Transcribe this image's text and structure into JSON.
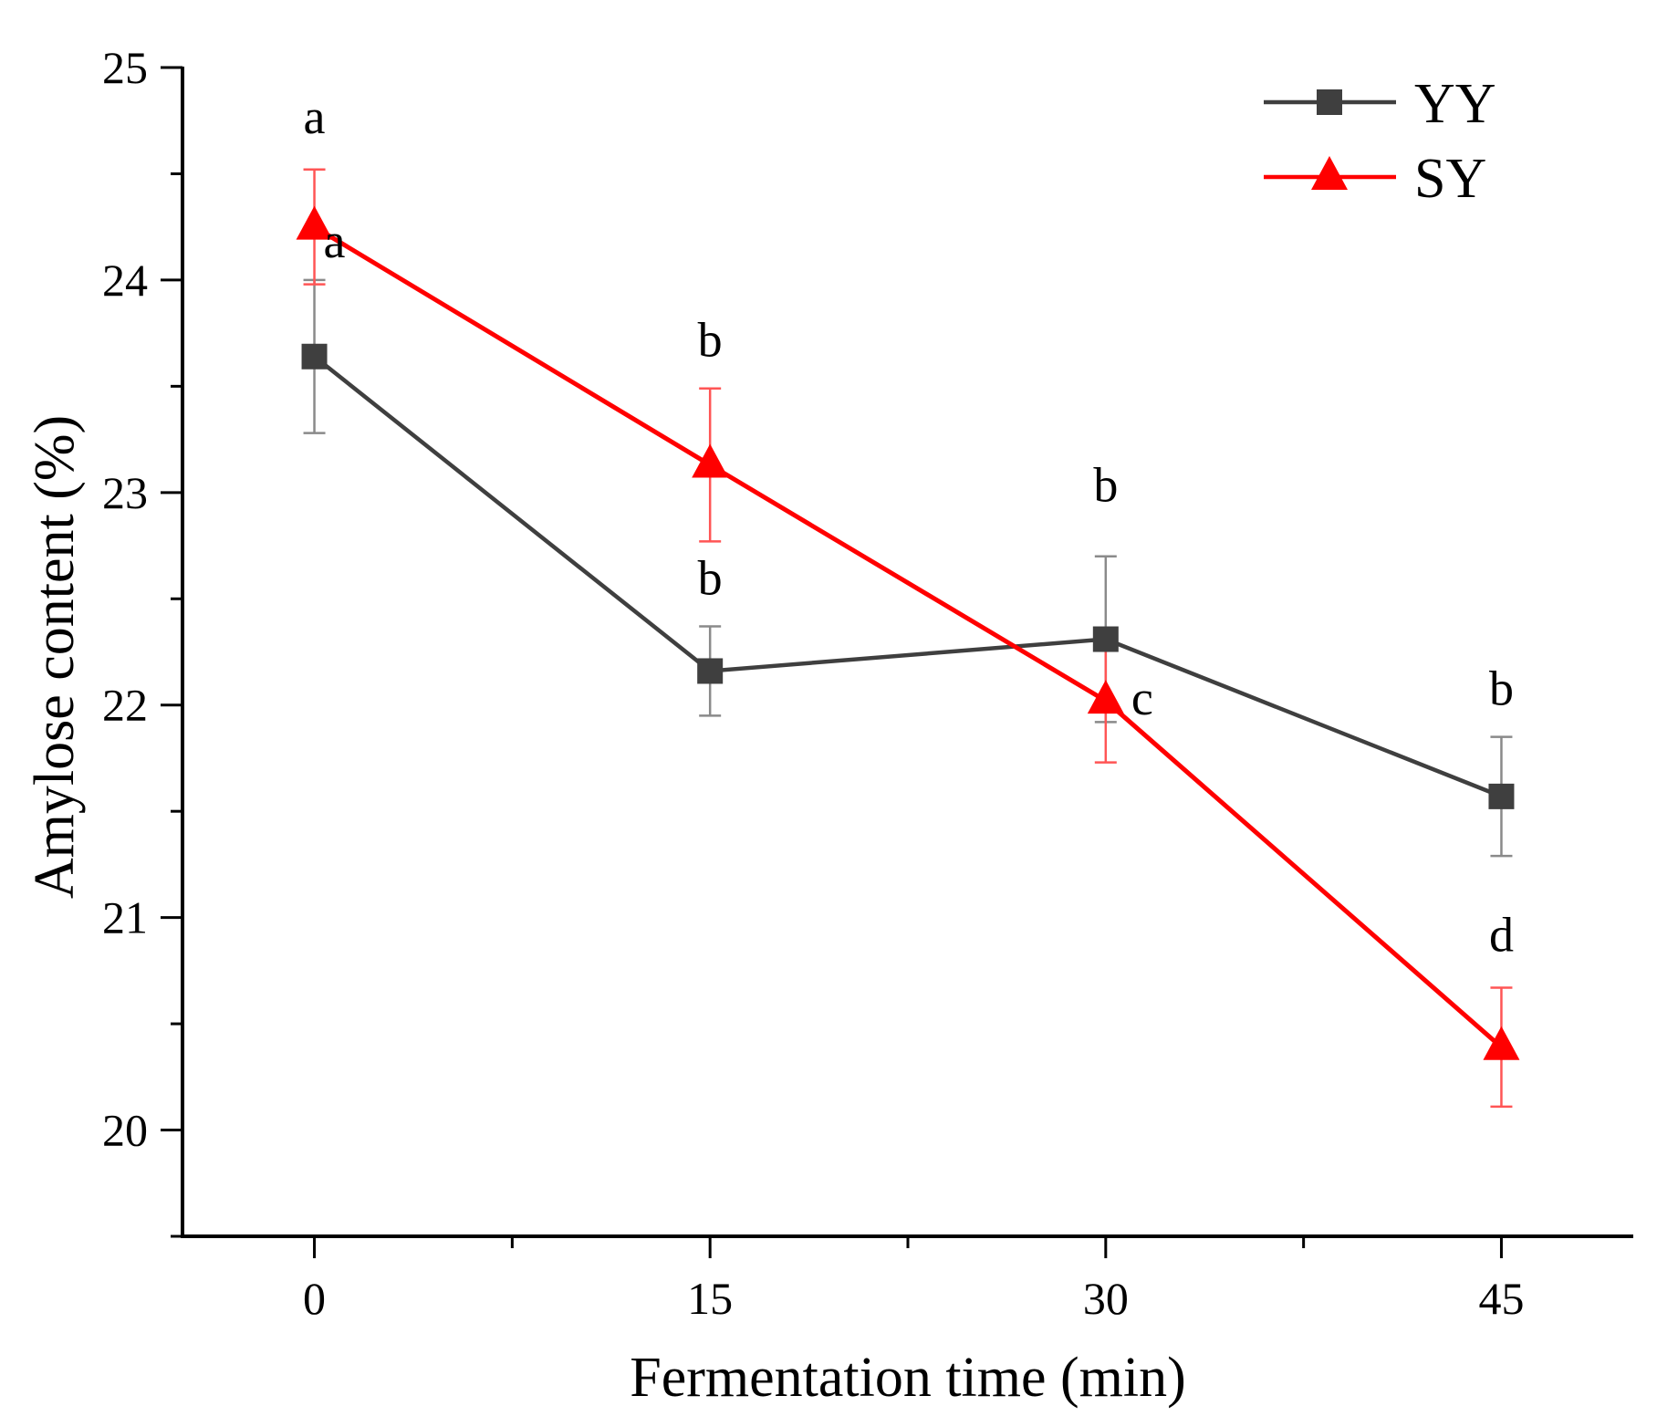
{
  "chart_data": {
    "type": "line",
    "xlabel": "Fermentation time (min)",
    "ylabel": "Amylose content (%)",
    "x": [
      0,
      15,
      30,
      45
    ],
    "x_tick_labels": [
      "0",
      "15",
      "30",
      "45"
    ],
    "xlim": [
      -5,
      50
    ],
    "ylim": [
      19.5,
      25
    ],
    "y_ticks": [
      20,
      21,
      22,
      23,
      24,
      25
    ],
    "y_tick_labels": [
      "20",
      "21",
      "22",
      "23",
      "24",
      "25"
    ],
    "legend_position": "top-right",
    "series": [
      {
        "name": "YY",
        "color": "#3f3f3f",
        "marker": "square",
        "values": [
          23.64,
          22.16,
          22.31,
          21.57
        ],
        "errors": [
          0.36,
          0.21,
          0.39,
          0.28
        ],
        "sig_letters": [
          "a",
          "b",
          "b",
          "b"
        ]
      },
      {
        "name": "SY",
        "color": "#ff0000",
        "marker": "triangle",
        "values": [
          24.25,
          23.13,
          22.02,
          20.39
        ],
        "errors": [
          0.27,
          0.36,
          0.29,
          0.28
        ],
        "sig_letters": [
          "a",
          "b",
          "c",
          "d"
        ]
      }
    ]
  }
}
